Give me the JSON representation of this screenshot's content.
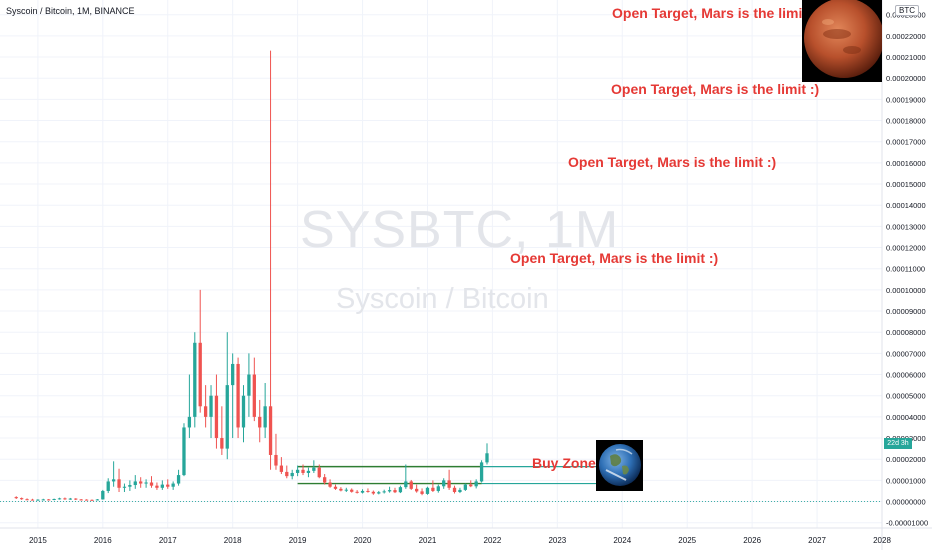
{
  "header": {
    "title": "Syscoin / Bitcoin, 1M, BINANCE",
    "currency": "BTC"
  },
  "watermark": {
    "ticker": "SYSBTC, 1M",
    "name": "Syscoin / Bitcoin"
  },
  "annotations": [
    "Open Target,  Mars is the limit :)",
    "Open Target,  Mars is the limit :)",
    "Open Target,  Mars is the limit :)",
    "Open Target,  Mars is the limit :)"
  ],
  "buy_zone": {
    "label": "Buy Zone",
    "top": 1.65e-05,
    "bottom": 8.5e-06,
    "start": "2019-01",
    "end": "2021-11"
  },
  "price_badge": "22d 3h",
  "images": {
    "mars": "mars-planet-image",
    "earth": "earth-planet-image"
  },
  "colors": {
    "up": "#26a69a",
    "down": "#ef5350",
    "annotation": "#e53935",
    "buy_zone_line": "#2e7d32",
    "price_line": "#26a69a",
    "grid": "#f0f3fa",
    "watermark": "#e3e5ea"
  },
  "chart_data": {
    "type": "candlestick",
    "title": "Syscoin / Bitcoin, 1M, BINANCE",
    "x_ticks": [
      "2015",
      "2016",
      "2017",
      "2018",
      "2019",
      "2020",
      "2021",
      "2022",
      "2023",
      "2024",
      "2025",
      "2026",
      "2027",
      "2028"
    ],
    "y_ticks": [
      "0.00023000",
      "0.00022000",
      "0.00021000",
      "0.00020000",
      "0.00019000",
      "0.00018000",
      "0.00017000",
      "0.00016000",
      "0.00015000",
      "0.00014000",
      "0.00013000",
      "0.00012000",
      "0.00011000",
      "0.00010000",
      "0.00009000",
      "0.00008000",
      "0.00007000",
      "0.00006000",
      "0.00005000",
      "0.00004000",
      "0.00003000",
      "0.00002000",
      "0.00001000",
      "0.00000000",
      "-0.00001000"
    ],
    "ylim": [
      -1.25e-05,
      0.000236
    ],
    "xlim": [
      "2014-06",
      "2028-01"
    ],
    "grid": true,
    "last_value": 2.28e-05,
    "candles": [
      {
        "t": "2014-09",
        "o": 2.1,
        "h": 2.5,
        "l": 1.2,
        "c": 1.6
      },
      {
        "t": "2014-10",
        "o": 1.6,
        "h": 1.9,
        "l": 0.8,
        "c": 1.1
      },
      {
        "t": "2014-11",
        "o": 1.1,
        "h": 1.5,
        "l": 0.6,
        "c": 0.9
      },
      {
        "t": "2014-12",
        "o": 0.9,
        "h": 1.3,
        "l": 0.5,
        "c": 0.7
      },
      {
        "t": "2015-01",
        "o": 0.7,
        "h": 1.1,
        "l": 0.4,
        "c": 0.9
      },
      {
        "t": "2015-02",
        "o": 0.9,
        "h": 1.3,
        "l": 0.6,
        "c": 1.0
      },
      {
        "t": "2015-03",
        "o": 1.0,
        "h": 1.2,
        "l": 0.5,
        "c": 0.8
      },
      {
        "t": "2015-04",
        "o": 0.8,
        "h": 1.4,
        "l": 0.6,
        "c": 1.2
      },
      {
        "t": "2015-05",
        "o": 1.2,
        "h": 1.8,
        "l": 0.9,
        "c": 1.5
      },
      {
        "t": "2015-06",
        "o": 1.5,
        "h": 1.9,
        "l": 0.8,
        "c": 1.1
      },
      {
        "t": "2015-07",
        "o": 1.1,
        "h": 1.7,
        "l": 0.8,
        "c": 1.4
      },
      {
        "t": "2015-08",
        "o": 1.4,
        "h": 1.6,
        "l": 0.7,
        "c": 1.0
      },
      {
        "t": "2015-09",
        "o": 1.0,
        "h": 1.2,
        "l": 0.6,
        "c": 0.9
      },
      {
        "t": "2015-10",
        "o": 0.9,
        "h": 1.1,
        "l": 0.5,
        "c": 0.8
      },
      {
        "t": "2015-11",
        "o": 0.8,
        "h": 1.0,
        "l": 0.5,
        "c": 0.7
      },
      {
        "t": "2015-12",
        "o": 0.7,
        "h": 1.2,
        "l": 0.5,
        "c": 1.0
      },
      {
        "t": "2016-01",
        "o": 1.0,
        "h": 5.5,
        "l": 0.9,
        "c": 5.0
      },
      {
        "t": "2016-02",
        "o": 5.0,
        "h": 11.0,
        "l": 4.0,
        "c": 9.5
      },
      {
        "t": "2016-03",
        "o": 9.5,
        "h": 19.0,
        "l": 7.0,
        "c": 10.5
      },
      {
        "t": "2016-04",
        "o": 10.5,
        "h": 15.5,
        "l": 4.5,
        "c": 6.5
      },
      {
        "t": "2016-05",
        "o": 6.5,
        "h": 8.5,
        "l": 4.5,
        "c": 7.0
      },
      {
        "t": "2016-06",
        "o": 7.0,
        "h": 10.0,
        "l": 5.0,
        "c": 7.8
      },
      {
        "t": "2016-07",
        "o": 7.8,
        "h": 12.5,
        "l": 6.0,
        "c": 9.5
      },
      {
        "t": "2016-08",
        "o": 9.5,
        "h": 11.5,
        "l": 6.5,
        "c": 8.5
      },
      {
        "t": "2016-09",
        "o": 8.5,
        "h": 10.5,
        "l": 6.5,
        "c": 9.0
      },
      {
        "t": "2016-10",
        "o": 9.0,
        "h": 12.0,
        "l": 6.5,
        "c": 7.5
      },
      {
        "t": "2016-11",
        "o": 7.5,
        "h": 9.0,
        "l": 5.5,
        "c": 6.5
      },
      {
        "t": "2016-12",
        "o": 6.5,
        "h": 10.0,
        "l": 5.5,
        "c": 8.0
      },
      {
        "t": "2017-01",
        "o": 8.0,
        "h": 10.5,
        "l": 6.0,
        "c": 7.0
      },
      {
        "t": "2017-02",
        "o": 7.0,
        "h": 9.5,
        "l": 5.5,
        "c": 8.5
      },
      {
        "t": "2017-03",
        "o": 8.5,
        "h": 15.0,
        "l": 7.5,
        "c": 12.5
      },
      {
        "t": "2017-04",
        "o": 12.5,
        "h": 37.0,
        "l": 12.0,
        "c": 35.0
      },
      {
        "t": "2017-05",
        "o": 35.0,
        "h": 60.0,
        "l": 30.0,
        "c": 40.0
      },
      {
        "t": "2017-06",
        "o": 40.0,
        "h": 80.0,
        "l": 35.0,
        "c": 75.0
      },
      {
        "t": "2017-07",
        "o": 75.0,
        "h": 100.0,
        "l": 42.0,
        "c": 45.0
      },
      {
        "t": "2017-08",
        "o": 45.0,
        "h": 55.0,
        "l": 35.0,
        "c": 40.0
      },
      {
        "t": "2017-09",
        "o": 40.0,
        "h": 55.0,
        "l": 30.0,
        "c": 50.0
      },
      {
        "t": "2017-10",
        "o": 50.0,
        "h": 60.0,
        "l": 25.0,
        "c": 30.0
      },
      {
        "t": "2017-11",
        "o": 30.0,
        "h": 45.0,
        "l": 22.0,
        "c": 25.0
      },
      {
        "t": "2017-12",
        "o": 25.0,
        "h": 80.0,
        "l": 20.0,
        "c": 55.0
      },
      {
        "t": "2018-01",
        "o": 55.0,
        "h": 70.0,
        "l": 30.0,
        "c": 65.0
      },
      {
        "t": "2018-02",
        "o": 65.0,
        "h": 68.0,
        "l": 30.0,
        "c": 35.0
      },
      {
        "t": "2018-03",
        "o": 35.0,
        "h": 55.0,
        "l": 28.0,
        "c": 50.0
      },
      {
        "t": "2018-04",
        "o": 50.0,
        "h": 70.0,
        "l": 40.0,
        "c": 60.0
      },
      {
        "t": "2018-05",
        "o": 60.0,
        "h": 68.0,
        "l": 38.0,
        "c": 40.0
      },
      {
        "t": "2018-06",
        "o": 40.0,
        "h": 48.0,
        "l": 28.0,
        "c": 35.0
      },
      {
        "t": "2018-07",
        "o": 35.0,
        "h": 56.0,
        "l": 30.0,
        "c": 45.0
      },
      {
        "t": "2018-08",
        "o": 45.0,
        "h": 213.0,
        "l": 15.0,
        "c": 22.0
      },
      {
        "t": "2018-09",
        "o": 22.0,
        "h": 32.0,
        "l": 15.0,
        "c": 17.0
      },
      {
        "t": "2018-10",
        "o": 17.0,
        "h": 21.0,
        "l": 13.0,
        "c": 14.0
      },
      {
        "t": "2018-11",
        "o": 14.0,
        "h": 17.0,
        "l": 11.0,
        "c": 12.0
      },
      {
        "t": "2018-12",
        "o": 12.0,
        "h": 15.0,
        "l": 10.5,
        "c": 13.5
      },
      {
        "t": "2019-01",
        "o": 13.5,
        "h": 17.0,
        "l": 12.0,
        "c": 15.0
      },
      {
        "t": "2019-02",
        "o": 15.0,
        "h": 17.5,
        "l": 12.5,
        "c": 13.5
      },
      {
        "t": "2019-03",
        "o": 13.5,
        "h": 16.0,
        "l": 11.5,
        "c": 14.5
      },
      {
        "t": "2019-04",
        "o": 14.5,
        "h": 19.5,
        "l": 13.5,
        "c": 16.0
      },
      {
        "t": "2019-05",
        "o": 16.0,
        "h": 17.5,
        "l": 11.0,
        "c": 11.5
      },
      {
        "t": "2019-06",
        "o": 11.5,
        "h": 13.0,
        "l": 8.0,
        "c": 9.0
      },
      {
        "t": "2019-07",
        "o": 9.0,
        "h": 10.5,
        "l": 6.5,
        "c": 7.0
      },
      {
        "t": "2019-08",
        "o": 7.0,
        "h": 8.0,
        "l": 5.5,
        "c": 6.0
      },
      {
        "t": "2019-09",
        "o": 6.0,
        "h": 6.8,
        "l": 4.8,
        "c": 5.2
      },
      {
        "t": "2019-10",
        "o": 5.2,
        "h": 6.5,
        "l": 4.5,
        "c": 5.6
      },
      {
        "t": "2019-11",
        "o": 5.6,
        "h": 6.2,
        "l": 4.2,
        "c": 4.6
      },
      {
        "t": "2019-12",
        "o": 4.6,
        "h": 5.4,
        "l": 3.8,
        "c": 4.2
      },
      {
        "t": "2020-01",
        "o": 4.2,
        "h": 5.8,
        "l": 3.8,
        "c": 5.0
      },
      {
        "t": "2020-02",
        "o": 5.0,
        "h": 6.2,
        "l": 4.2,
        "c": 4.6
      },
      {
        "t": "2020-03",
        "o": 4.6,
        "h": 5.2,
        "l": 3.2,
        "c": 3.8
      },
      {
        "t": "2020-04",
        "o": 3.8,
        "h": 5.0,
        "l": 3.4,
        "c": 4.4
      },
      {
        "t": "2020-05",
        "o": 4.4,
        "h": 5.6,
        "l": 3.8,
        "c": 4.8
      },
      {
        "t": "2020-06",
        "o": 4.8,
        "h": 7.0,
        "l": 4.2,
        "c": 5.4
      },
      {
        "t": "2020-07",
        "o": 5.4,
        "h": 6.5,
        "l": 4.0,
        "c": 4.4
      },
      {
        "t": "2020-08",
        "o": 4.4,
        "h": 7.5,
        "l": 4.0,
        "c": 6.8
      },
      {
        "t": "2020-09",
        "o": 6.8,
        "h": 17.5,
        "l": 6.0,
        "c": 9.5
      },
      {
        "t": "2020-10",
        "o": 9.5,
        "h": 10.2,
        "l": 5.5,
        "c": 6.0
      },
      {
        "t": "2020-11",
        "o": 6.0,
        "h": 8.0,
        "l": 4.2,
        "c": 4.8
      },
      {
        "t": "2020-12",
        "o": 4.8,
        "h": 6.2,
        "l": 3.0,
        "c": 3.6
      },
      {
        "t": "2021-01",
        "o": 3.6,
        "h": 7.0,
        "l": 3.2,
        "c": 6.5
      },
      {
        "t": "2021-02",
        "o": 6.5,
        "h": 10.0,
        "l": 4.5,
        "c": 5.0
      },
      {
        "t": "2021-03",
        "o": 5.0,
        "h": 8.0,
        "l": 4.2,
        "c": 7.2
      },
      {
        "t": "2021-04",
        "o": 7.2,
        "h": 11.0,
        "l": 6.0,
        "c": 10.0
      },
      {
        "t": "2021-05",
        "o": 10.0,
        "h": 15.0,
        "l": 5.5,
        "c": 6.5
      },
      {
        "t": "2021-06",
        "o": 6.5,
        "h": 7.5,
        "l": 3.8,
        "c": 4.5
      },
      {
        "t": "2021-07",
        "o": 4.5,
        "h": 6.5,
        "l": 4.0,
        "c": 5.5
      },
      {
        "t": "2021-08",
        "o": 5.5,
        "h": 8.5,
        "l": 5.0,
        "c": 8.0
      },
      {
        "t": "2021-09",
        "o": 8.0,
        "h": 10.0,
        "l": 6.8,
        "c": 7.2
      },
      {
        "t": "2021-10",
        "o": 7.2,
        "h": 10.5,
        "l": 6.2,
        "c": 9.5
      },
      {
        "t": "2021-11",
        "o": 9.5,
        "h": 19.5,
        "l": 9.0,
        "c": 18.5
      },
      {
        "t": "2021-12",
        "o": 18.5,
        "h": 27.5,
        "l": 17.5,
        "c": 22.8
      }
    ]
  }
}
